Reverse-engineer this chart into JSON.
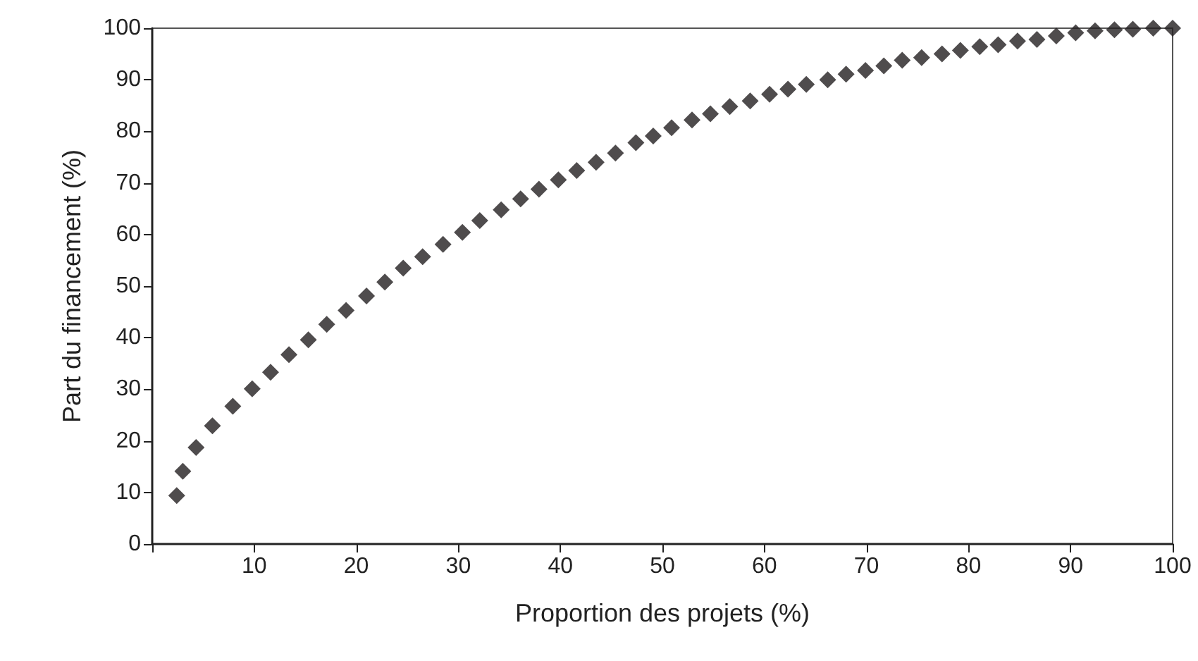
{
  "chart_data": {
    "type": "scatter",
    "xlabel": "Proportion des projets (%)",
    "ylabel": "Part du financement (%)",
    "x": [
      2.4,
      3.0,
      4.3,
      5.9,
      7.9,
      9.8,
      11.6,
      13.4,
      15.3,
      17.1,
      19.0,
      21.0,
      22.8,
      24.6,
      26.5,
      28.5,
      30.4,
      32.1,
      34.2,
      36.1,
      37.9,
      39.8,
      41.6,
      43.5,
      45.4,
      47.4,
      49.1,
      50.9,
      52.9,
      54.7,
      56.6,
      58.6,
      60.5,
      62.3,
      64.1,
      66.2,
      68.0,
      69.9,
      71.7,
      73.5,
      75.4,
      77.4,
      79.2,
      81.1,
      82.9,
      84.8,
      86.7,
      88.6,
      90.5,
      92.4,
      94.3,
      96.1,
      98.1,
      100
    ],
    "values": [
      9.4,
      14.1,
      18.7,
      22.9,
      26.7,
      30.1,
      33.3,
      36.7,
      39.6,
      42.6,
      45.3,
      48.1,
      50.8,
      53.5,
      55.7,
      58.1,
      60.4,
      62.7,
      64.8,
      66.9,
      68.8,
      70.6,
      72.4,
      74.0,
      75.8,
      77.8,
      79.1,
      80.7,
      82.2,
      83.4,
      84.8,
      85.9,
      87.2,
      88.2,
      89.1,
      90.0,
      91.1,
      91.8,
      92.7,
      93.8,
      94.3,
      95.0,
      95.7,
      96.4,
      96.8,
      97.5,
      97.8,
      98.5,
      99.1,
      99.5,
      99.7,
      99.8,
      100,
      100
    ],
    "color": "#231f20",
    "marker": "diamond",
    "xlim": [
      0,
      100
    ],
    "xticks": [
      {
        "value": 0,
        "label": null
      },
      10,
      20,
      30,
      40,
      50,
      60,
      70,
      80,
      90,
      100
    ],
    "ylim": [
      0,
      100
    ],
    "yticks": [
      0,
      10,
      20,
      30,
      40,
      50,
      60,
      70,
      80,
      90,
      100
    ],
    "grid": false
  }
}
